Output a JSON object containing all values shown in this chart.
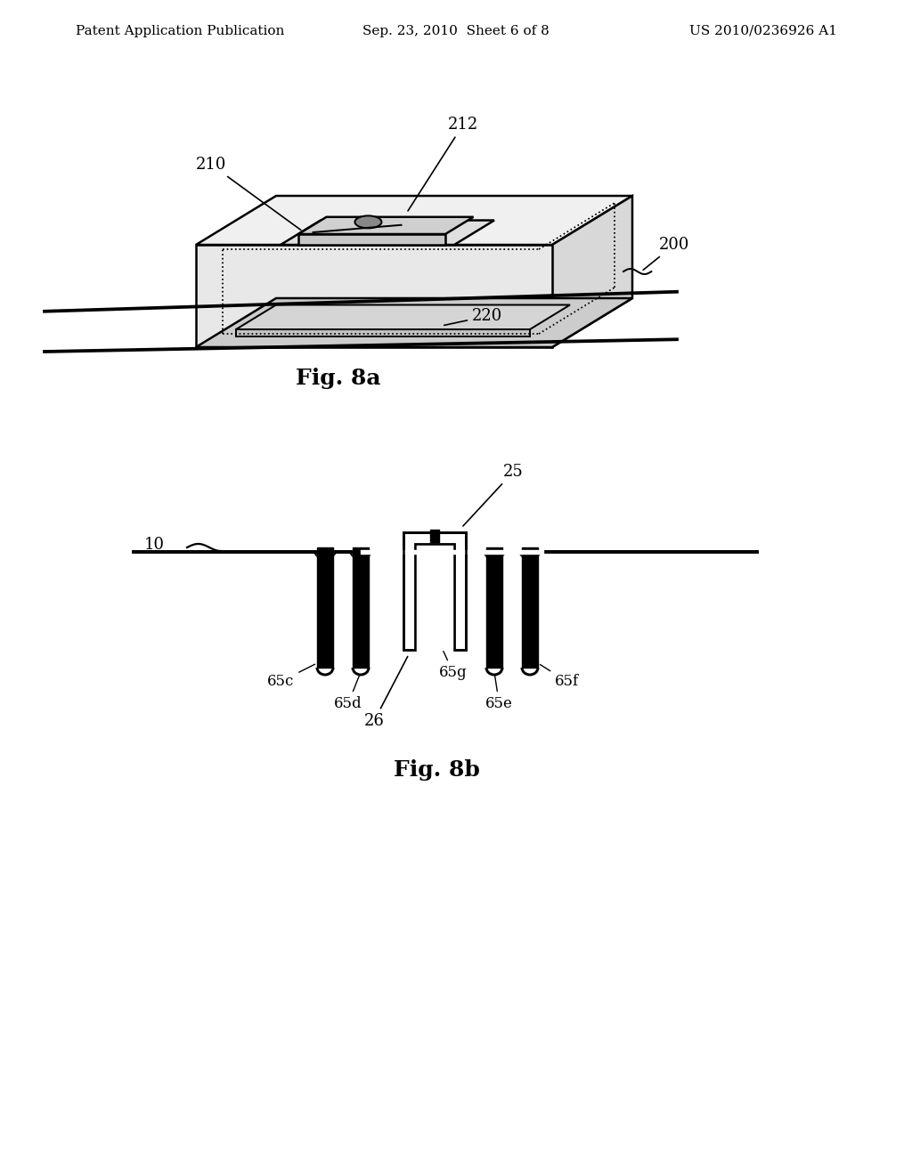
{
  "background_color": "#ffffff",
  "header": {
    "left": "Patent Application Publication",
    "center": "Sep. 23, 2010  Sheet 6 of 8",
    "right": "US 2010/0236926 A1",
    "fontsize": 11
  },
  "fig8a_label": "Fig. 8a",
  "fig8b_label": "Fig. 8b",
  "label_fontsize": 16,
  "annotation_fontsize": 13,
  "line_color": "#000000",
  "line_width": 1.8
}
